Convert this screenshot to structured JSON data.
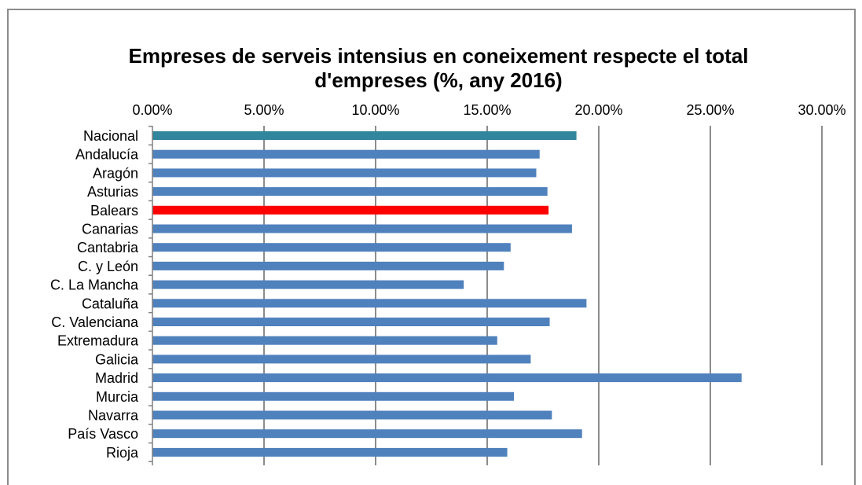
{
  "colors": {
    "default_bar": "#4f81bd",
    "national_bar": "#31859c",
    "highlight_bar": "#ff0000",
    "gridline": "#8c8c8c",
    "axis": "#808080"
  },
  "chart_data": {
    "type": "bar",
    "orientation": "horizontal",
    "title_lines": [
      "Empreses de serveis intensius en coneixement respecte el total",
      "d'empreses (%, any 2016)"
    ],
    "xlabel": "",
    "ylabel": "",
    "xlim": [
      0,
      30
    ],
    "x_ticks": [
      {
        "value": 0,
        "label": "0.00%"
      },
      {
        "value": 5,
        "label": "5.00%"
      },
      {
        "value": 10,
        "label": "10.00%"
      },
      {
        "value": 15,
        "label": "15.00%"
      },
      {
        "value": 20,
        "label": "20.00%"
      },
      {
        "value": 25,
        "label": "25.00%"
      },
      {
        "value": 30,
        "label": "30.00%"
      }
    ],
    "x_axis_position": "top",
    "grid": true,
    "legend": false,
    "categories": [
      "Nacional",
      "Andalucía",
      "Aragón",
      "Asturias",
      "Balears",
      "Canarias",
      "Cantabria",
      "C. y León",
      "C. La Mancha",
      "Cataluña",
      "C. Valenciana",
      "Extremadura",
      "Galicia",
      "Madrid",
      "Murcia",
      "Navarra",
      "País Vasco",
      "Rioja"
    ],
    "values": [
      19.0,
      17.35,
      17.2,
      17.7,
      17.75,
      18.8,
      16.05,
      15.75,
      13.95,
      19.45,
      17.8,
      15.45,
      16.95,
      26.4,
      16.2,
      17.9,
      19.25,
      15.9
    ],
    "bar_colors": [
      "national_bar",
      "default_bar",
      "default_bar",
      "default_bar",
      "highlight_bar",
      "default_bar",
      "default_bar",
      "default_bar",
      "default_bar",
      "default_bar",
      "default_bar",
      "default_bar",
      "default_bar",
      "default_bar",
      "default_bar",
      "default_bar",
      "default_bar",
      "default_bar"
    ]
  }
}
